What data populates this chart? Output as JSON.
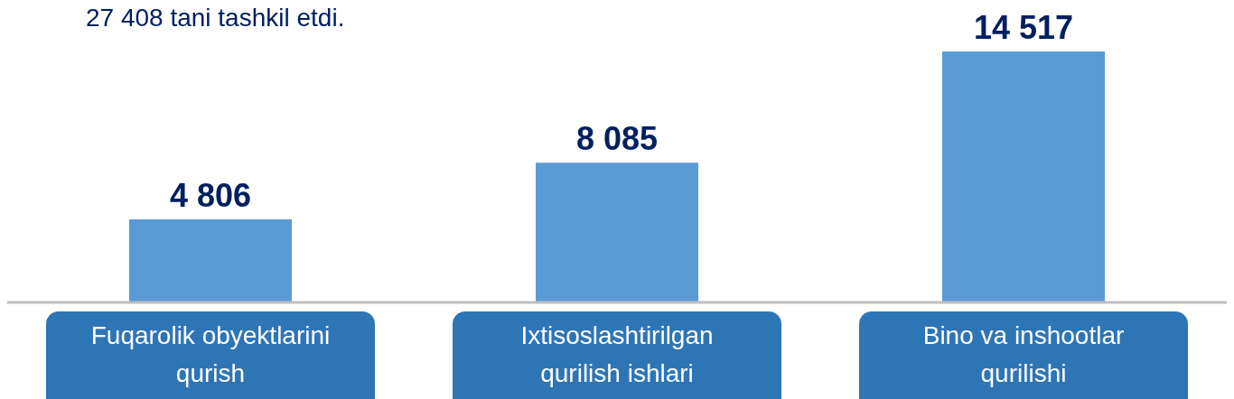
{
  "chart_data": {
    "type": "bar",
    "annotations": [
      "27 408 tani tashkil etdi."
    ],
    "categories": [
      "Fuqarolik obyektlarini\nqurish",
      "Ixtisoslashtirilgan\nqurilish ishlari",
      "Bino va inshootlar\nqurilishi"
    ],
    "values": [
      4806,
      8085,
      14517
    ],
    "color": "#5b9bd5",
    "data_labels": true,
    "value_labels": [
      "4 806",
      "8 085",
      "14 517"
    ],
    "grid": false,
    "legend": false
  }
}
